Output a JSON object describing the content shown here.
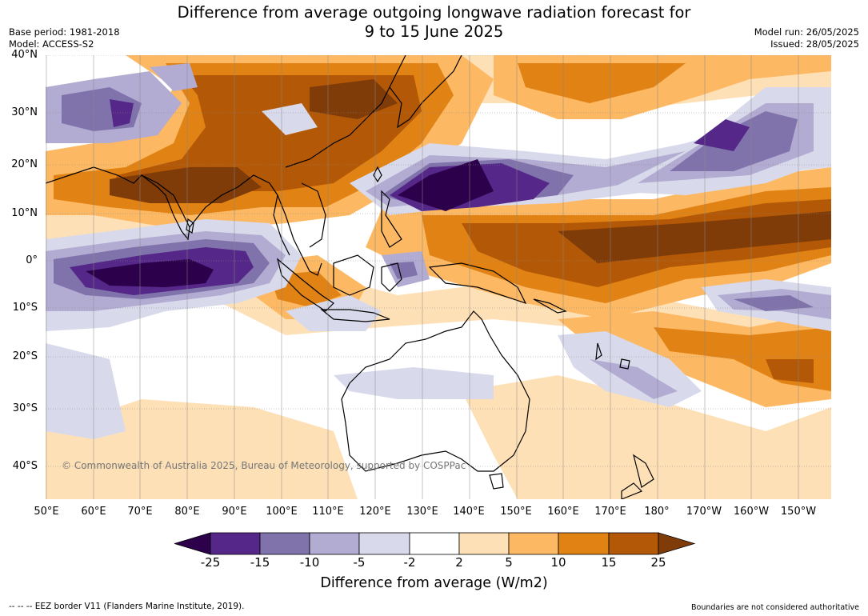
{
  "title": {
    "line1": "Difference from average outgoing longwave radiation forecast for",
    "line2": "9 to 15 June 2025"
  },
  "meta_left": {
    "base_period": "Base period: 1981-2018",
    "model": "Model: ACCESS-S2"
  },
  "meta_right": {
    "model_run": "Model run: 26/05/2025",
    "issued": "Issued: 28/05/2025"
  },
  "map": {
    "latitude_labels": [
      "40°N",
      "30°N",
      "20°N",
      "10°N",
      "0°",
      "10°S",
      "20°S",
      "30°S",
      "40°S"
    ],
    "longitude_labels": [
      "50°E",
      "60°E",
      "70°E",
      "80°E",
      "90°E",
      "100°E",
      "110°E",
      "120°E",
      "130°E",
      "140°E",
      "150°E",
      "160°E",
      "170°E",
      "180°",
      "170°W",
      "160°W",
      "150°W"
    ],
    "copyright": "© Commonwealth of Australia 2025, Bureau of Meteorology, supported by COSPPac"
  },
  "colorbar": {
    "ticks": [
      "-25",
      "-15",
      "-10",
      "-5",
      "-2",
      "2",
      "5",
      "10",
      "15",
      "25"
    ],
    "colors": [
      "#2d004b",
      "#542788",
      "#8073ac",
      "#b2abd2",
      "#d8daeb",
      "#ffffff",
      "#fee0b6",
      "#fdb863",
      "#e08214",
      "#b35806",
      "#7f3b08"
    ],
    "label": "Difference from average (W/m2)"
  },
  "footer": {
    "eez": "--  --  -- EEZ border V11 (Flanders Marine Institute, 2019).",
    "disclaimer": "Boundaries are not considered authoritative"
  }
}
